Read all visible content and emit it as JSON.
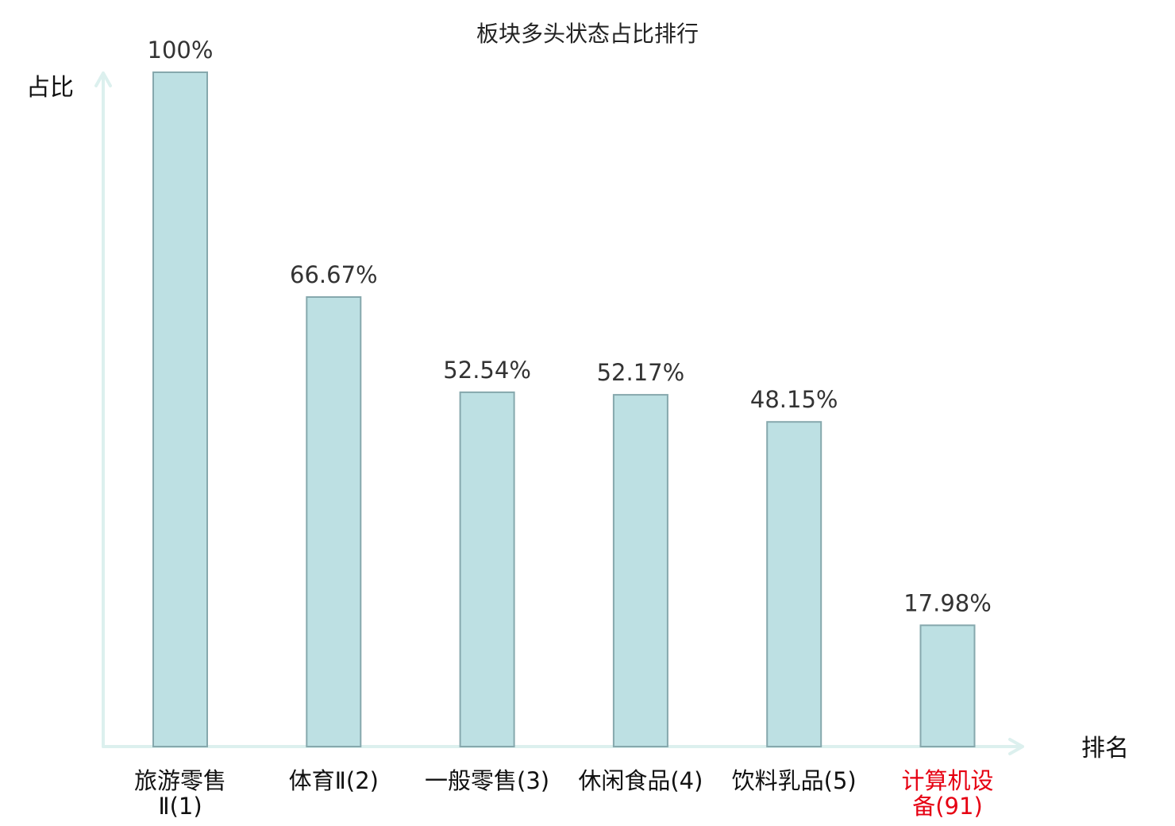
{
  "chart_data": {
    "type": "bar",
    "title": "板块多头状态占比排行",
    "ylabel": "占比",
    "xlabel": "排名",
    "ylim": [
      0,
      100
    ],
    "grid": false,
    "categories": [
      {
        "lines": [
          "旅游零售",
          "Ⅱ(1)"
        ],
        "highlight": false
      },
      {
        "lines": [
          "体育Ⅱ(2)"
        ],
        "highlight": false
      },
      {
        "lines": [
          "一般零售(3)"
        ],
        "highlight": false
      },
      {
        "lines": [
          "休闲食品(4)"
        ],
        "highlight": false
      },
      {
        "lines": [
          "饮料乳品(5)"
        ],
        "highlight": false
      },
      {
        "lines": [
          "计算机设",
          "备(91)"
        ],
        "highlight": true
      }
    ],
    "values": [
      100,
      66.67,
      52.54,
      52.17,
      48.15,
      17.98
    ],
    "value_labels": [
      "100%",
      "66.67%",
      "52.54%",
      "52.17%",
      "48.15%",
      "17.98%"
    ]
  }
}
